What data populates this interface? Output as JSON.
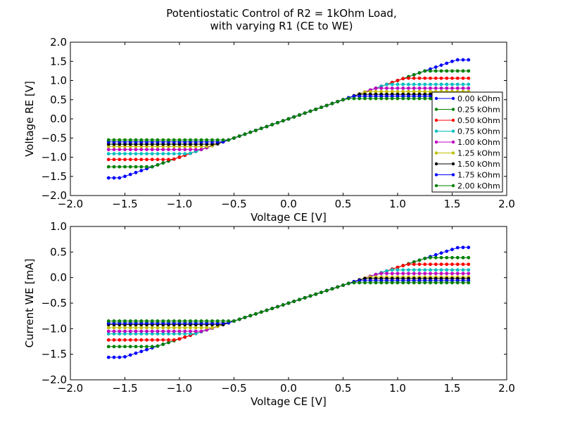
{
  "figure": {
    "title_line1": "Potentiostatic Control of R2 = 1kOhm Load,",
    "title_line2": "with varying R1 (CE to WE)"
  },
  "chart_data": [
    {
      "type": "line",
      "xlabel": "Voltage CE [V]",
      "ylabel": "Voltage RE [V]",
      "xlim": [
        -2.0,
        2.0
      ],
      "ylim": [
        -2.0,
        2.0
      ],
      "xticks": [
        -2.0,
        -1.5,
        -1.0,
        -0.5,
        0.0,
        0.5,
        1.0,
        1.5,
        2.0
      ],
      "xtick_labels": [
        "−2.0",
        "−1.5",
        "−1.0",
        "−0.5",
        "0.0",
        "0.5",
        "1.0",
        "1.5",
        "2.0"
      ],
      "yticks": [
        -2.0,
        -1.5,
        -1.0,
        -0.5,
        0.0,
        0.5,
        1.0,
        1.5,
        2.0
      ],
      "ytick_labels": [
        "−2.0",
        "−1.5",
        "−1.0",
        "−0.5",
        "0.0",
        "0.5",
        "1.0",
        "1.5",
        "2.0"
      ],
      "grid": false,
      "legend_position": "right",
      "x_range": [
        -1.65,
        1.65
      ],
      "points_per_series": 67,
      "series": [
        {
          "name": "0.00 kOhm",
          "color": "#0000ff",
          "lower_plateau": -1.54,
          "upper_plateau": 1.54,
          "knee": 1.53
        },
        {
          "name": "0.25 kOhm",
          "color": "#008000",
          "lower_plateau": -1.25,
          "upper_plateau": 1.25,
          "knee": 1.24
        },
        {
          "name": "0.50 kOhm",
          "color": "#ff0000",
          "lower_plateau": -1.06,
          "upper_plateau": 1.06,
          "knee": 1.05
        },
        {
          "name": "0.75 kOhm",
          "color": "#00bfbf",
          "lower_plateau": -0.91,
          "upper_plateau": 0.9,
          "knee": 0.9
        },
        {
          "name": "1.00 kOhm",
          "color": "#bf00bf",
          "lower_plateau": -0.8,
          "upper_plateau": 0.8,
          "knee": 0.79
        },
        {
          "name": "1.25 kOhm",
          "color": "#bfbf00",
          "lower_plateau": -0.72,
          "upper_plateau": 0.71,
          "knee": 0.71
        },
        {
          "name": "1.50 kOhm",
          "color": "#000000",
          "lower_plateau": -0.66,
          "upper_plateau": 0.64,
          "knee": 0.65
        },
        {
          "name": "1.75 kOhm",
          "color": "#0000ff",
          "lower_plateau": -0.6,
          "upper_plateau": 0.59,
          "knee": 0.59
        },
        {
          "name": "2.00 kOhm",
          "color": "#008000",
          "lower_plateau": -0.55,
          "upper_plateau": 0.53,
          "knee": 0.55
        }
      ]
    },
    {
      "type": "line",
      "xlabel": "Voltage CE [V]",
      "ylabel": "Current WE [mA]",
      "xlim": [
        -2.0,
        2.0
      ],
      "ylim": [
        -2.0,
        1.0
      ],
      "xticks": [
        -2.0,
        -1.5,
        -1.0,
        -0.5,
        0.0,
        0.5,
        1.0,
        1.5,
        2.0
      ],
      "xtick_labels": [
        "−2.0",
        "−1.5",
        "−1.0",
        "−0.5",
        "0.0",
        "0.5",
        "1.0",
        "1.5",
        "2.0"
      ],
      "yticks": [
        -2.0,
        -1.5,
        -1.0,
        -0.5,
        0.0,
        0.5,
        1.0
      ],
      "ytick_labels": [
        "−2.0",
        "−1.5",
        "−1.0",
        "−0.5",
        "0.0",
        "0.5",
        "1.0"
      ],
      "grid": false,
      "x_range": [
        -1.65,
        1.65
      ],
      "points_per_series": 67,
      "current_offset": -0.5,
      "series": [
        {
          "name": "0.00 kOhm",
          "color": "#0000ff",
          "lower_plateau": -1.56,
          "upper_plateau": 0.59,
          "knee": 1.53
        },
        {
          "name": "0.25 kOhm",
          "color": "#008000",
          "lower_plateau": -1.35,
          "upper_plateau": 0.39,
          "knee": 1.24
        },
        {
          "name": "0.50 kOhm",
          "color": "#ff0000",
          "lower_plateau": -1.22,
          "upper_plateau": 0.26,
          "knee": 1.05
        },
        {
          "name": "0.75 kOhm",
          "color": "#00bfbf",
          "lower_plateau": -1.1,
          "upper_plateau": 0.15,
          "knee": 0.9
        },
        {
          "name": "1.00 kOhm",
          "color": "#bf00bf",
          "lower_plateau": -1.05,
          "upper_plateau": 0.08,
          "knee": 0.79
        },
        {
          "name": "1.25 kOhm",
          "color": "#bfbf00",
          "lower_plateau": -0.98,
          "upper_plateau": 0.01,
          "knee": 0.71
        },
        {
          "name": "1.50 kOhm",
          "color": "#000000",
          "lower_plateau": -0.92,
          "upper_plateau": -0.02,
          "knee": 0.65
        },
        {
          "name": "1.75 kOhm",
          "color": "#0000ff",
          "lower_plateau": -0.89,
          "upper_plateau": -0.06,
          "knee": 0.59
        },
        {
          "name": "2.00 kOhm",
          "color": "#008000",
          "lower_plateau": -0.85,
          "upper_plateau": -0.1,
          "knee": 0.55
        }
      ]
    }
  ]
}
